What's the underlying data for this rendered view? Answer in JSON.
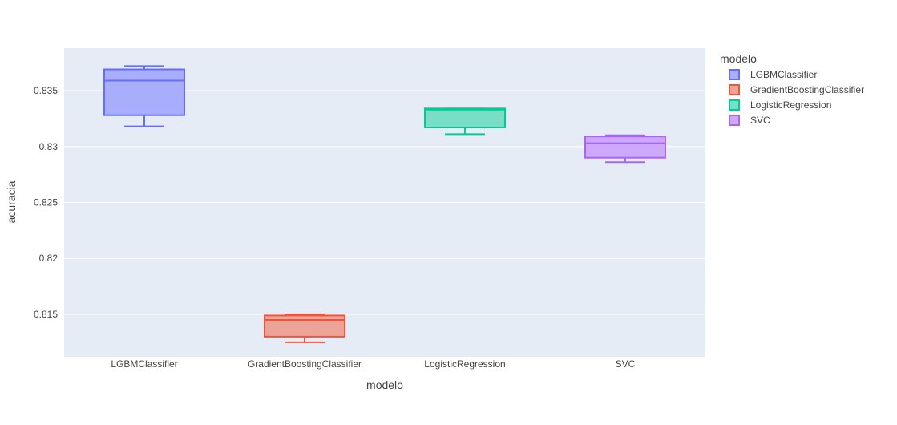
{
  "chart_data": {
    "type": "box",
    "xlabel": "modelo",
    "ylabel": "acuracia",
    "ylim": [
      0.8112,
      0.8388
    ],
    "yticks": [
      0.815,
      0.82,
      0.825,
      0.83,
      0.835
    ],
    "ytick_labels": [
      "0.815",
      "0.82",
      "0.825",
      "0.83",
      "0.835"
    ],
    "grid": true,
    "categories": [
      "LGBMClassifier",
      "GradientBoostingClassifier",
      "LogisticRegression",
      "SVC"
    ],
    "series": [
      {
        "name": "LGBMClassifier",
        "color": "#636efa",
        "fill": "#a9aefc",
        "min": 0.8318,
        "q1": 0.8328,
        "median": 0.8359,
        "q3": 0.8369,
        "max": 0.8372
      },
      {
        "name": "GradientBoostingClassifier",
        "color": "#ef553b",
        "fill": "#eba497",
        "min": 0.8125,
        "q1": 0.813,
        "median": 0.8145,
        "q3": 0.8149,
        "max": 0.815
      },
      {
        "name": "LogisticRegression",
        "color": "#00cc96",
        "fill": "#76dfc6",
        "min": 0.8311,
        "q1": 0.8317,
        "median": 0.8333,
        "q3": 0.8334,
        "max": 0.8334
      },
      {
        "name": "SVC",
        "color": "#ab63fa",
        "fill": "#cda9fc",
        "min": 0.8286,
        "q1": 0.829,
        "median": 0.8303,
        "q3": 0.8309,
        "max": 0.831
      }
    ],
    "legend": {
      "title": "modelo",
      "position": "right"
    }
  }
}
